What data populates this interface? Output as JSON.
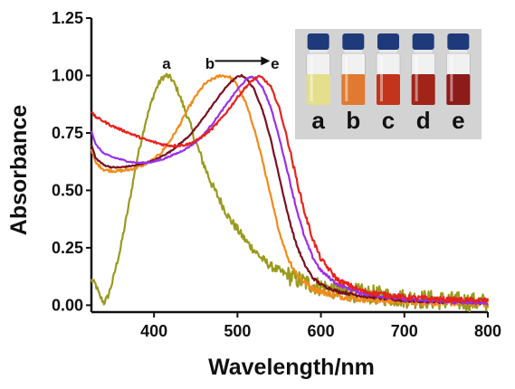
{
  "chart_data": {
    "type": "line",
    "xlabel": "Wavelength/nm",
    "ylabel": "Absorbance",
    "xlim": [
      325,
      800
    ],
    "ylim": [
      -0.03,
      1.25
    ],
    "xticks": [
      {
        "value": 400,
        "label": "400"
      },
      {
        "value": 500,
        "label": "500"
      },
      {
        "value": 600,
        "label": "600"
      },
      {
        "value": 700,
        "label": "700"
      },
      {
        "value": 800,
        "label": "800"
      }
    ],
    "yticks": [
      {
        "value": 0.0,
        "label": "0.00"
      },
      {
        "value": 0.25,
        "label": "0.25"
      },
      {
        "value": 0.5,
        "label": "0.50"
      },
      {
        "value": 0.75,
        "label": "0.75"
      },
      {
        "value": 1.0,
        "label": "1.00"
      },
      {
        "value": 1.25,
        "label": "1.25"
      }
    ],
    "grid": false,
    "legend": "none",
    "annotations": [
      {
        "text": "a",
        "x": 415,
        "y": 1.03
      },
      {
        "text": "b",
        "x": 467,
        "y": 1.03
      },
      {
        "text": "e",
        "x": 545,
        "y": 1.03
      }
    ],
    "arrow": {
      "from": [
        473,
        1.04
      ],
      "to": [
        539,
        1.04
      ]
    },
    "series": [
      {
        "name": "a",
        "color": "#9a9a1e",
        "noise": 0.012,
        "x": [
          325,
          330,
          335,
          340,
          345,
          350,
          360,
          370,
          380,
          390,
          400,
          405,
          410,
          415,
          420,
          425,
          430,
          440,
          450,
          460,
          470,
          480,
          490,
          500,
          510,
          520,
          530,
          540,
          550,
          560,
          580,
          600,
          625,
          650,
          675,
          700,
          725,
          750,
          775,
          800
        ],
        "y": [
          0.11,
          0.09,
          0.04,
          0.01,
          0.04,
          0.1,
          0.25,
          0.44,
          0.64,
          0.8,
          0.92,
          0.96,
          0.99,
          1.0,
          0.99,
          0.96,
          0.92,
          0.82,
          0.71,
          0.61,
          0.52,
          0.45,
          0.38,
          0.33,
          0.28,
          0.24,
          0.2,
          0.17,
          0.15,
          0.13,
          0.1,
          0.08,
          0.06,
          0.05,
          0.04,
          0.03,
          0.025,
          0.02,
          0.015,
          0.01
        ]
      },
      {
        "name": "b",
        "color": "#f28a1a",
        "noise": 0.006,
        "x": [
          325,
          330,
          340,
          350,
          360,
          370,
          380,
          390,
          400,
          410,
          420,
          430,
          440,
          450,
          460,
          470,
          480,
          490,
          495,
          500,
          510,
          520,
          530,
          540,
          550,
          560,
          570,
          580,
          590,
          600,
          620,
          650,
          700,
          750,
          800
        ],
        "y": [
          0.68,
          0.62,
          0.59,
          0.585,
          0.585,
          0.59,
          0.6,
          0.615,
          0.635,
          0.67,
          0.72,
          0.78,
          0.85,
          0.91,
          0.96,
          0.985,
          1.0,
          0.995,
          0.98,
          0.955,
          0.88,
          0.77,
          0.63,
          0.47,
          0.32,
          0.21,
          0.14,
          0.1,
          0.075,
          0.06,
          0.04,
          0.025,
          0.015,
          0.01,
          0.01
        ]
      },
      {
        "name": "c",
        "color": "#7a1020",
        "noise": 0.003,
        "x": [
          325,
          330,
          340,
          350,
          360,
          370,
          380,
          390,
          400,
          410,
          420,
          430,
          440,
          450,
          460,
          470,
          480,
          490,
          500,
          505,
          510,
          520,
          530,
          540,
          550,
          560,
          570,
          580,
          590,
          600,
          620,
          650,
          700,
          750,
          800
        ],
        "y": [
          0.7,
          0.64,
          0.61,
          0.6,
          0.6,
          0.605,
          0.61,
          0.62,
          0.63,
          0.65,
          0.67,
          0.7,
          0.73,
          0.77,
          0.82,
          0.87,
          0.92,
          0.965,
          0.995,
          1.0,
          0.99,
          0.94,
          0.85,
          0.72,
          0.56,
          0.4,
          0.27,
          0.18,
          0.12,
          0.09,
          0.06,
          0.04,
          0.02,
          0.015,
          0.01
        ]
      },
      {
        "name": "d",
        "color": "#9b30e8",
        "noise": 0.003,
        "x": [
          325,
          330,
          340,
          350,
          360,
          370,
          380,
          390,
          400,
          410,
          420,
          430,
          440,
          450,
          460,
          470,
          480,
          490,
          500,
          510,
          515,
          520,
          530,
          540,
          550,
          560,
          570,
          580,
          590,
          600,
          620,
          650,
          700,
          750,
          800
        ],
        "y": [
          0.76,
          0.7,
          0.66,
          0.645,
          0.635,
          0.625,
          0.62,
          0.62,
          0.625,
          0.635,
          0.65,
          0.665,
          0.685,
          0.71,
          0.745,
          0.79,
          0.84,
          0.89,
          0.94,
          0.98,
          0.995,
          0.99,
          0.95,
          0.86,
          0.73,
          0.58,
          0.43,
          0.3,
          0.21,
          0.15,
          0.09,
          0.05,
          0.025,
          0.015,
          0.01
        ]
      },
      {
        "name": "e",
        "color": "#e8221c",
        "noise": 0.005,
        "x": [
          325,
          330,
          340,
          350,
          360,
          370,
          380,
          390,
          400,
          410,
          420,
          430,
          440,
          450,
          460,
          470,
          480,
          490,
          500,
          510,
          520,
          525,
          530,
          540,
          550,
          560,
          570,
          580,
          590,
          600,
          620,
          650,
          700,
          750,
          800
        ],
        "y": [
          0.84,
          0.82,
          0.8,
          0.78,
          0.765,
          0.75,
          0.735,
          0.72,
          0.71,
          0.7,
          0.695,
          0.695,
          0.7,
          0.715,
          0.74,
          0.77,
          0.81,
          0.855,
          0.905,
          0.95,
          0.985,
          0.995,
          0.99,
          0.95,
          0.86,
          0.72,
          0.56,
          0.41,
          0.29,
          0.2,
          0.11,
          0.06,
          0.035,
          0.025,
          0.02
        ]
      }
    ]
  },
  "inset": {
    "description_labels": [
      "a",
      "b",
      "c",
      "d",
      "e"
    ],
    "vial_colors": [
      "#e3df8a",
      "#e07a30",
      "#c2351c",
      "#a02418",
      "#8c1c1a"
    ],
    "cap_color": "#1f3a7a",
    "background": "#d3d3d3"
  }
}
